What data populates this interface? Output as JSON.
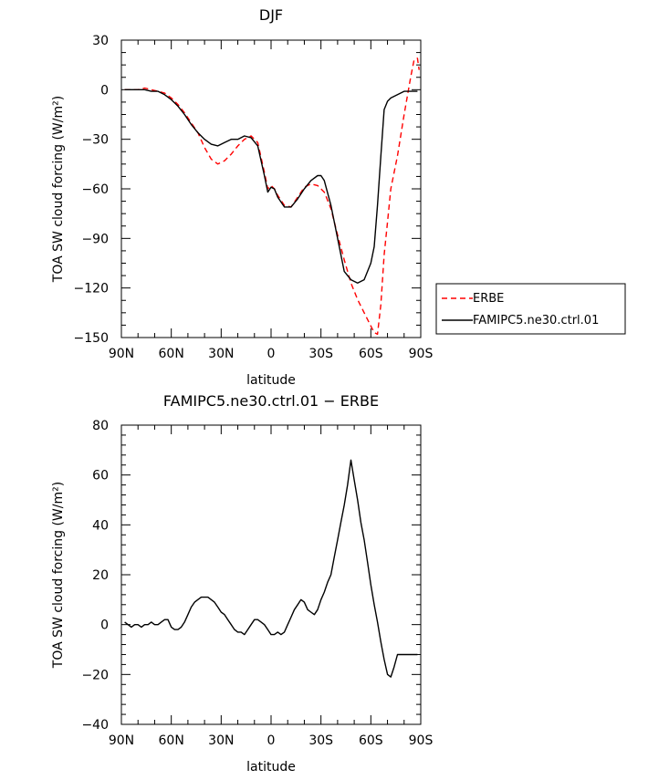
{
  "chart_data": [
    {
      "type": "line",
      "title": "DJF",
      "xlabel": "latitude",
      "ylabel": "TOA SW cloud forcing (W/m²)",
      "xlim": [
        90,
        -90
      ],
      "ylim": [
        -150,
        30
      ],
      "x_ticks": [
        90,
        60,
        30,
        0,
        -30,
        -60,
        -90
      ],
      "x_tick_labels": [
        "90N",
        "60N",
        "30N",
        "0",
        "30S",
        "60S",
        "90S"
      ],
      "y_ticks": [
        30,
        0,
        -30,
        -60,
        -90,
        -120,
        -150
      ],
      "y_tick_labels": [
        "30",
        "0",
        "−30",
        "−60",
        "−90",
        "−120",
        "−150"
      ],
      "legend": {
        "placement": "right, outside"
      },
      "series": [
        {
          "name": "ERBE",
          "color": "#ff0000",
          "dash": "dashed",
          "x": [
            88,
            84,
            80,
            76,
            72,
            68,
            64,
            60,
            56,
            52,
            48,
            44,
            40,
            36,
            32,
            28,
            24,
            20,
            16,
            12,
            8,
            4,
            2,
            0,
            -2,
            -4,
            -8,
            -12,
            -16,
            -20,
            -24,
            -28,
            -32,
            -36,
            -40,
            -44,
            -48,
            -52,
            -56,
            -60,
            -62,
            -64,
            -66,
            -68,
            -70,
            -72,
            -76,
            -80,
            -84,
            -86,
            -88,
            -89
          ],
          "y": [
            0,
            0,
            0,
            1,
            0,
            -1,
            -2,
            -5,
            -9,
            -14,
            -20,
            -26,
            -35,
            -42,
            -45,
            -43,
            -39,
            -34,
            -30,
            -28,
            -32,
            -50,
            -60,
            -58,
            -60,
            -64,
            -70,
            -71,
            -65,
            -59,
            -57,
            -58,
            -62,
            -72,
            -88,
            -103,
            -117,
            -127,
            -135,
            -143,
            -147,
            -148,
            -130,
            -100,
            -80,
            -60,
            -40,
            -15,
            8,
            18,
            19,
            12
          ]
        },
        {
          "name": "FAMIPC5.ne30.ctrl.01",
          "color": "#000000",
          "dash": "solid",
          "x": [
            88,
            84,
            80,
            76,
            72,
            68,
            64,
            60,
            56,
            52,
            48,
            44,
            40,
            36,
            32,
            28,
            24,
            20,
            16,
            12,
            8,
            4,
            2,
            0,
            -2,
            -4,
            -8,
            -12,
            -16,
            -20,
            -24,
            -28,
            -30,
            -32,
            -36,
            -40,
            -44,
            -48,
            -52,
            -56,
            -60,
            -62,
            -64,
            -66,
            -68,
            -70,
            -72,
            -76,
            -80,
            -84,
            -88
          ],
          "y": [
            0,
            0,
            0,
            0,
            -1,
            -1,
            -3,
            -6,
            -10,
            -15,
            -21,
            -26,
            -30,
            -33,
            -34,
            -32,
            -30,
            -30,
            -28,
            -29,
            -34,
            -52,
            -62,
            -59,
            -60,
            -65,
            -71,
            -71,
            -66,
            -60,
            -55,
            -52,
            -52,
            -55,
            -70,
            -90,
            -110,
            -115,
            -117,
            -115,
            -105,
            -95,
            -70,
            -40,
            -12,
            -7,
            -5,
            -3,
            -1,
            -1,
            -1
          ]
        }
      ]
    },
    {
      "type": "line",
      "title": "FAMIPC5.ne30.ctrl.01 − ERBE",
      "xlabel": "latitude",
      "ylabel": "TOA SW cloud forcing (W/m²)",
      "xlim": [
        90,
        -90
      ],
      "ylim": [
        -40,
        80
      ],
      "x_ticks": [
        90,
        60,
        30,
        0,
        -30,
        -60,
        -90
      ],
      "x_tick_labels": [
        "90N",
        "60N",
        "30N",
        "0",
        "30S",
        "60S",
        "90S"
      ],
      "y_ticks": [
        80,
        60,
        40,
        20,
        0,
        -20,
        -40
      ],
      "y_tick_labels": [
        "80",
        "60",
        "40",
        "20",
        "0",
        "−20",
        "−40"
      ],
      "series": [
        {
          "color": "#000000",
          "dash": "solid",
          "x": [
            88,
            86,
            84,
            82,
            80,
            78,
            76,
            74,
            72,
            70,
            68,
            66,
            64,
            62,
            60,
            58,
            56,
            54,
            52,
            50,
            48,
            46,
            44,
            42,
            40,
            38,
            36,
            34,
            32,
            30,
            28,
            26,
            24,
            22,
            20,
            18,
            16,
            14,
            12,
            10,
            8,
            6,
            4,
            2,
            0,
            -2,
            -4,
            -6,
            -8,
            -10,
            -12,
            -14,
            -16,
            -18,
            -20,
            -22,
            -24,
            -26,
            -28,
            -30,
            -32,
            -34,
            -36,
            -38,
            -40,
            -42,
            -44,
            -46,
            -48,
            -50,
            -52,
            -54,
            -56,
            -58,
            -60,
            -62,
            -64,
            -66,
            -68,
            -70,
            -72,
            -74,
            -76,
            -78,
            -80,
            -82,
            -84,
            -86,
            -88
          ],
          "y": [
            1,
            0,
            -1,
            0,
            0,
            -1,
            0,
            0,
            1,
            0,
            0,
            1,
            2,
            2,
            -1,
            -2,
            -2,
            -1,
            1,
            4,
            7,
            9,
            10,
            11,
            11,
            11,
            10,
            9,
            7,
            5,
            4,
            2,
            0,
            -2,
            -3,
            -3,
            -4,
            -2,
            0,
            2,
            2,
            1,
            0,
            -2,
            -4,
            -4,
            -3,
            -4,
            -3,
            0,
            3,
            6,
            8,
            10,
            9,
            6,
            5,
            4,
            6,
            10,
            13,
            17,
            20,
            27,
            34,
            41,
            48,
            56,
            66,
            58,
            50,
            41,
            34,
            25,
            16,
            8,
            1,
            -7,
            -14,
            -20,
            -21,
            -17,
            -12,
            -12,
            -12,
            -12,
            -12,
            -12,
            -12
          ]
        }
      ]
    }
  ]
}
